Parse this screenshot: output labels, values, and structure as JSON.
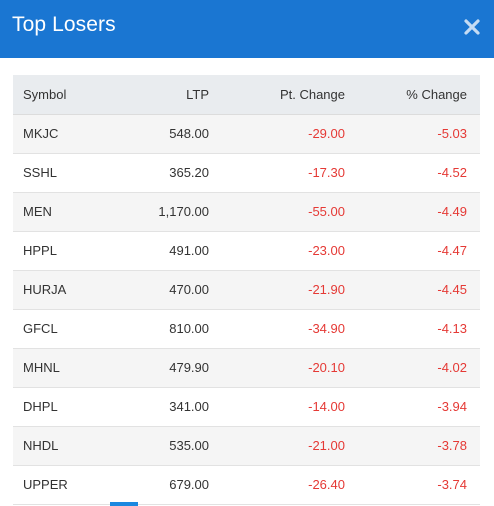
{
  "modal": {
    "title": "Top Losers",
    "close_icon": "close-icon"
  },
  "colors": {
    "header_bg": "#1a76d2",
    "negative": "#e53935"
  },
  "table": {
    "headers": {
      "symbol": "Symbol",
      "ltp": "LTP",
      "pt_change": "Pt. Change",
      "pct_change": "% Change"
    },
    "rows": [
      {
        "symbol": "MKJC",
        "ltp": "548.00",
        "pt_change": "-29.00",
        "pct_change": "-5.03"
      },
      {
        "symbol": "SSHL",
        "ltp": "365.20",
        "pt_change": "-17.30",
        "pct_change": "-4.52"
      },
      {
        "symbol": "MEN",
        "ltp": "1,170.00",
        "pt_change": "-55.00",
        "pct_change": "-4.49"
      },
      {
        "symbol": "HPPL",
        "ltp": "491.00",
        "pt_change": "-23.00",
        "pct_change": "-4.47"
      },
      {
        "symbol": "HURJA",
        "ltp": "470.00",
        "pt_change": "-21.90",
        "pct_change": "-4.45"
      },
      {
        "symbol": "GFCL",
        "ltp": "810.00",
        "pt_change": "-34.90",
        "pct_change": "-4.13"
      },
      {
        "symbol": "MHNL",
        "ltp": "479.90",
        "pt_change": "-20.10",
        "pct_change": "-4.02"
      },
      {
        "symbol": "DHPL",
        "ltp": "341.00",
        "pt_change": "-14.00",
        "pct_change": "-3.94"
      },
      {
        "symbol": "NHDL",
        "ltp": "535.00",
        "pt_change": "-21.00",
        "pct_change": "-3.78"
      },
      {
        "symbol": "UPPER",
        "ltp": "679.00",
        "pt_change": "-26.40",
        "pct_change": "-3.74"
      }
    ]
  }
}
